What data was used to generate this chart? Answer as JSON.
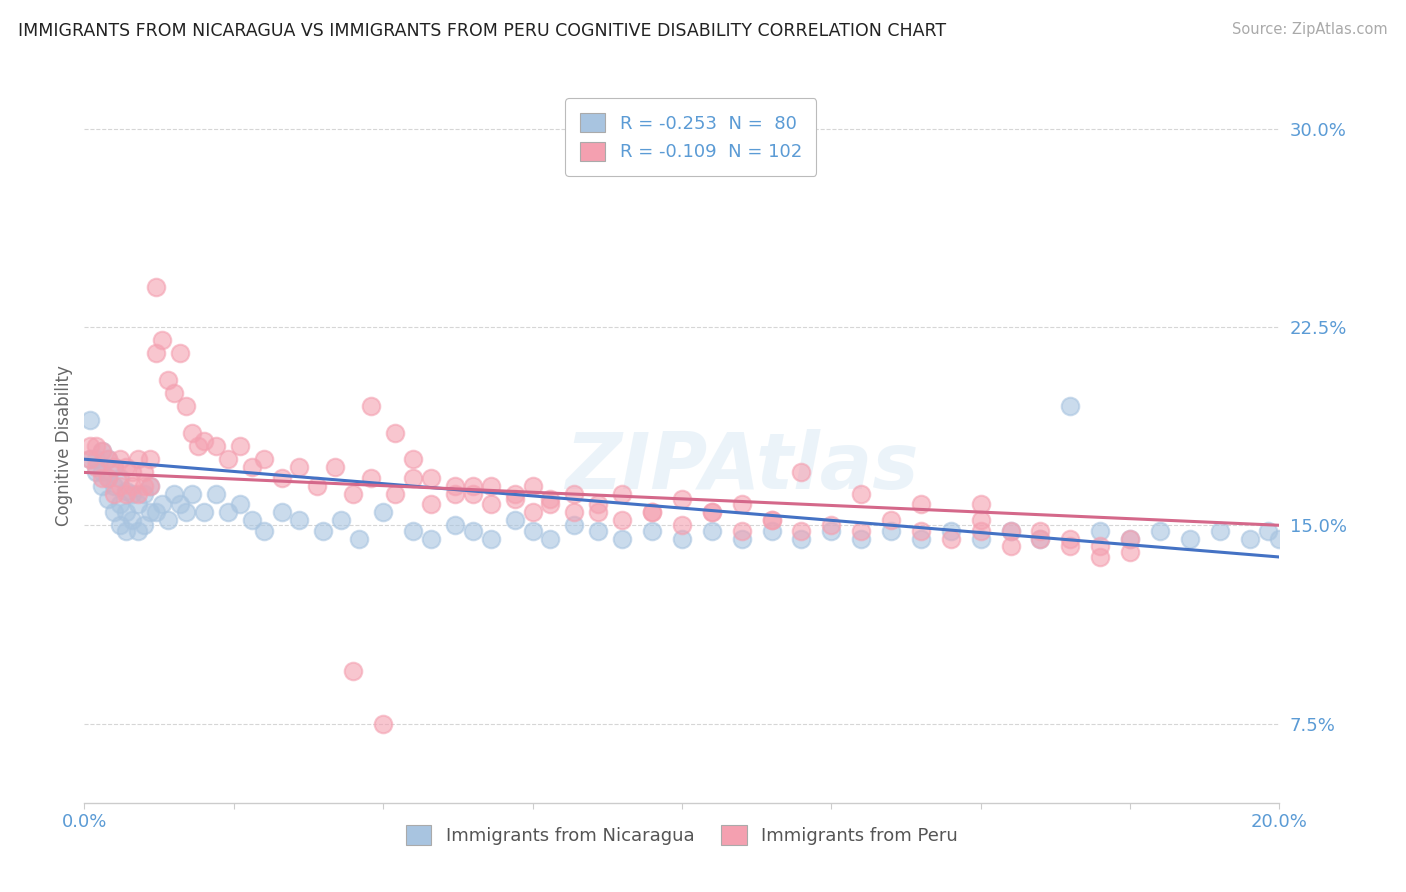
{
  "title": "IMMIGRANTS FROM NICARAGUA VS IMMIGRANTS FROM PERU COGNITIVE DISABILITY CORRELATION CHART",
  "source": "Source: ZipAtlas.com",
  "ylabel": "Cognitive Disability",
  "xlim": [
    0.0,
    0.2
  ],
  "ylim": [
    0.045,
    0.315
  ],
  "yticks": [
    0.075,
    0.15,
    0.225,
    0.3
  ],
  "ytick_labels": [
    "7.5%",
    "15.0%",
    "22.5%",
    "30.0%"
  ],
  "xticks": [
    0.0,
    0.025,
    0.05,
    0.075,
    0.1,
    0.125,
    0.15,
    0.175,
    0.2
  ],
  "nicaragua_R": -0.253,
  "nicaragua_N": 80,
  "peru_R": -0.109,
  "peru_N": 102,
  "nicaragua_color": "#a8c4e0",
  "peru_color": "#f4a0b0",
  "nicaragua_line_color": "#4472c4",
  "peru_line_color": "#d4688a",
  "legend_label_nicaragua": "Immigrants from Nicaragua",
  "legend_label_peru": "Immigrants from Peru",
  "watermark": "ZIPAtlas",
  "background_color": "#ffffff",
  "grid_color": "#cccccc",
  "axis_color": "#5b9bd5",
  "tick_color": "#aaaaaa",
  "title_color": "#222222",
  "source_color": "#aaaaaa",
  "ylabel_color": "#666666",
  "nic_line_x0": 0.0,
  "nic_line_y0": 0.175,
  "nic_line_x1": 0.2,
  "nic_line_y1": 0.138,
  "peru_line_x0": 0.0,
  "peru_line_y0": 0.17,
  "peru_line_x1": 0.2,
  "peru_line_y1": 0.15,
  "nicaragua_x": [
    0.001,
    0.001,
    0.002,
    0.002,
    0.003,
    0.003,
    0.003,
    0.004,
    0.004,
    0.004,
    0.005,
    0.005,
    0.005,
    0.006,
    0.006,
    0.006,
    0.007,
    0.007,
    0.007,
    0.008,
    0.008,
    0.009,
    0.009,
    0.01,
    0.01,
    0.011,
    0.011,
    0.012,
    0.013,
    0.014,
    0.015,
    0.016,
    0.017,
    0.018,
    0.02,
    0.022,
    0.024,
    0.026,
    0.028,
    0.03,
    0.033,
    0.036,
    0.04,
    0.043,
    0.046,
    0.05,
    0.055,
    0.058,
    0.062,
    0.065,
    0.068,
    0.072,
    0.075,
    0.078,
    0.082,
    0.086,
    0.09,
    0.095,
    0.1,
    0.105,
    0.11,
    0.115,
    0.12,
    0.125,
    0.13,
    0.135,
    0.14,
    0.145,
    0.15,
    0.155,
    0.16,
    0.165,
    0.17,
    0.175,
    0.18,
    0.185,
    0.19,
    0.195,
    0.198,
    0.2
  ],
  "nicaragua_y": [
    0.175,
    0.19,
    0.17,
    0.175,
    0.165,
    0.17,
    0.178,
    0.16,
    0.168,
    0.175,
    0.155,
    0.165,
    0.172,
    0.15,
    0.158,
    0.168,
    0.148,
    0.155,
    0.163,
    0.152,
    0.162,
    0.148,
    0.158,
    0.15,
    0.162,
    0.155,
    0.165,
    0.155,
    0.158,
    0.152,
    0.162,
    0.158,
    0.155,
    0.162,
    0.155,
    0.162,
    0.155,
    0.158,
    0.152,
    0.148,
    0.155,
    0.152,
    0.148,
    0.152,
    0.145,
    0.155,
    0.148,
    0.145,
    0.15,
    0.148,
    0.145,
    0.152,
    0.148,
    0.145,
    0.15,
    0.148,
    0.145,
    0.148,
    0.145,
    0.148,
    0.145,
    0.148,
    0.145,
    0.148,
    0.145,
    0.148,
    0.145,
    0.148,
    0.145,
    0.148,
    0.145,
    0.195,
    0.148,
    0.145,
    0.148,
    0.145,
    0.148,
    0.145,
    0.148,
    0.145
  ],
  "peru_x": [
    0.001,
    0.001,
    0.002,
    0.002,
    0.003,
    0.003,
    0.004,
    0.004,
    0.005,
    0.005,
    0.006,
    0.006,
    0.007,
    0.007,
    0.008,
    0.008,
    0.009,
    0.009,
    0.01,
    0.01,
    0.011,
    0.011,
    0.012,
    0.012,
    0.013,
    0.014,
    0.015,
    0.016,
    0.017,
    0.018,
    0.019,
    0.02,
    0.022,
    0.024,
    0.026,
    0.028,
    0.03,
    0.033,
    0.036,
    0.039,
    0.042,
    0.045,
    0.048,
    0.052,
    0.055,
    0.058,
    0.062,
    0.065,
    0.068,
    0.072,
    0.075,
    0.078,
    0.082,
    0.086,
    0.09,
    0.095,
    0.1,
    0.105,
    0.11,
    0.115,
    0.048,
    0.052,
    0.055,
    0.058,
    0.062,
    0.065,
    0.068,
    0.072,
    0.075,
    0.078,
    0.082,
    0.086,
    0.09,
    0.095,
    0.1,
    0.105,
    0.11,
    0.115,
    0.12,
    0.125,
    0.13,
    0.135,
    0.14,
    0.145,
    0.15,
    0.155,
    0.16,
    0.165,
    0.17,
    0.175,
    0.12,
    0.13,
    0.14,
    0.15,
    0.15,
    0.155,
    0.16,
    0.165,
    0.17,
    0.175,
    0.045,
    0.05
  ],
  "peru_y": [
    0.175,
    0.18,
    0.172,
    0.18,
    0.168,
    0.178,
    0.168,
    0.175,
    0.162,
    0.172,
    0.165,
    0.175,
    0.162,
    0.172,
    0.165,
    0.17,
    0.162,
    0.175,
    0.165,
    0.17,
    0.165,
    0.175,
    0.24,
    0.215,
    0.22,
    0.205,
    0.2,
    0.215,
    0.195,
    0.185,
    0.18,
    0.182,
    0.18,
    0.175,
    0.18,
    0.172,
    0.175,
    0.168,
    0.172,
    0.165,
    0.172,
    0.162,
    0.168,
    0.162,
    0.168,
    0.158,
    0.165,
    0.162,
    0.165,
    0.16,
    0.165,
    0.158,
    0.162,
    0.155,
    0.162,
    0.155,
    0.16,
    0.155,
    0.158,
    0.152,
    0.195,
    0.185,
    0.175,
    0.168,
    0.162,
    0.165,
    0.158,
    0.162,
    0.155,
    0.16,
    0.155,
    0.158,
    0.152,
    0.155,
    0.15,
    0.155,
    0.148,
    0.152,
    0.148,
    0.15,
    0.148,
    0.152,
    0.148,
    0.145,
    0.148,
    0.142,
    0.148,
    0.145,
    0.142,
    0.145,
    0.17,
    0.162,
    0.158,
    0.152,
    0.158,
    0.148,
    0.145,
    0.142,
    0.138,
    0.14,
    0.095,
    0.075
  ]
}
